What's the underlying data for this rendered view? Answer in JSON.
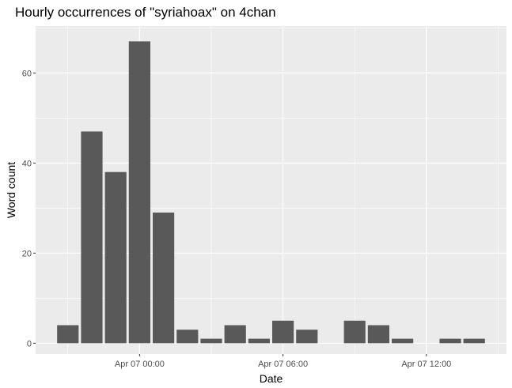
{
  "chart_data": {
    "type": "bar",
    "title": "Hourly occurrences of \"syriahoax\" on 4chan",
    "xlabel": "Date",
    "ylabel": "Word count",
    "x": [
      "Apr 06 21:00",
      "Apr 06 22:00",
      "Apr 06 23:00",
      "Apr 07 00:00",
      "Apr 07 01:00",
      "Apr 07 02:00",
      "Apr 07 03:00",
      "Apr 07 04:00",
      "Apr 07 05:00",
      "Apr 07 06:00",
      "Apr 07 07:00",
      "Apr 07 08:00",
      "Apr 07 09:00",
      "Apr 07 10:00",
      "Apr 07 11:00",
      "Apr 07 12:00",
      "Apr 07 13:00",
      "Apr 07 14:00"
    ],
    "values": [
      4,
      47,
      38,
      67,
      29,
      3,
      1,
      4,
      1,
      5,
      3,
      0,
      5,
      4,
      1,
      0,
      1,
      1
    ],
    "xticks": [
      {
        "value": "Apr 07 00:00",
        "label": "Apr 07 00:00"
      },
      {
        "value": "Apr 07 06:00",
        "label": "Apr 07 06:00"
      },
      {
        "value": "Apr 07 12:00",
        "label": "Apr 07 12:00"
      }
    ],
    "yticks": [
      0,
      20,
      40,
      60
    ],
    "ylim": [
      -2.4,
      70.4
    ],
    "bar_color": "#595959",
    "panel_background": "#ebebeb",
    "grid_color": "#ffffff",
    "grid": true,
    "legend": "none"
  }
}
